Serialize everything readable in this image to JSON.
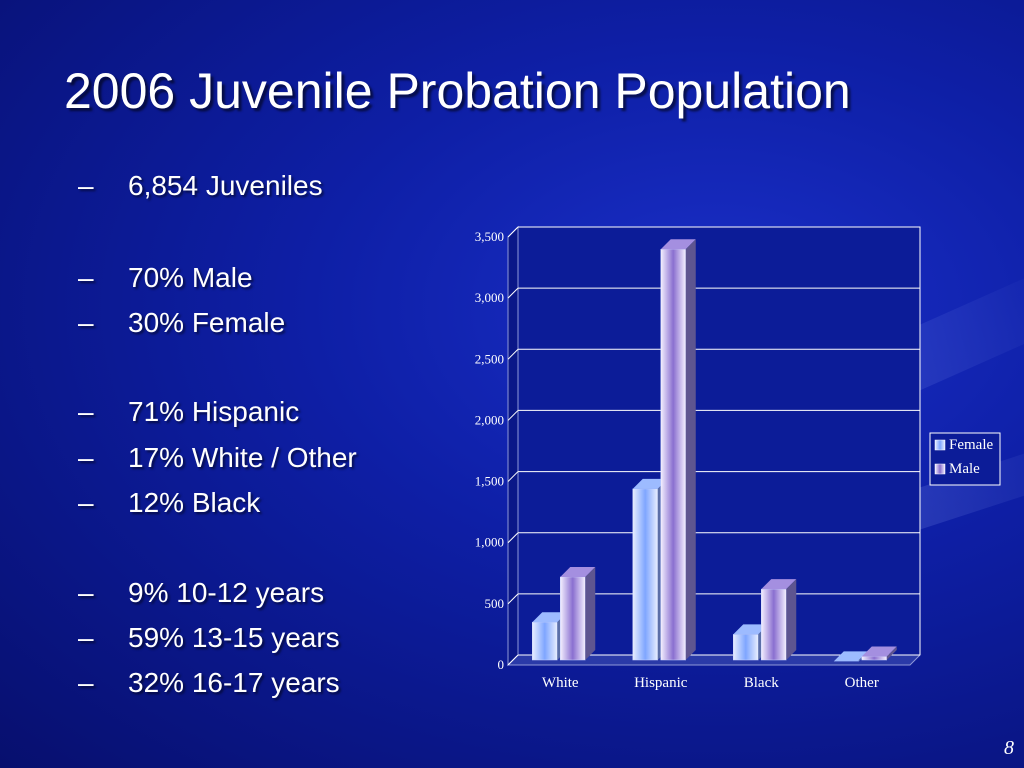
{
  "slide": {
    "title": "2006 Juvenile Probation Population",
    "bullets": [
      "6,854 Juveniles",
      "70% Male",
      "30% Female",
      "71% Hispanic",
      "17% White / Other",
      "12% Black",
      "9% 10-12 years",
      "59% 13-15 years",
      "32% 16-17 years"
    ],
    "bullet_marker": "–",
    "page_number": "8"
  },
  "colors": {
    "background": "#0e1fa6",
    "female_series": "#7fa6ff",
    "male_series": "#8a6fd0"
  },
  "chart_data": {
    "type": "bar",
    "style": "3d-clustered",
    "categories": [
      "White",
      "Hispanic",
      "Black",
      "Other"
    ],
    "series": [
      {
        "name": "Female",
        "values": [
          350,
          1440,
          250,
          30
        ]
      },
      {
        "name": "Male",
        "values": [
          720,
          3400,
          620,
          70
        ]
      }
    ],
    "ylim": [
      0,
      3500
    ],
    "yticks": [
      0,
      500,
      1000,
      1500,
      2000,
      2500,
      3000,
      3500
    ],
    "ytick_labels": [
      "0",
      "500",
      "1,000",
      "1,500",
      "2,000",
      "2,500",
      "3,000",
      "3,500"
    ],
    "grid": true,
    "legend": "right"
  }
}
